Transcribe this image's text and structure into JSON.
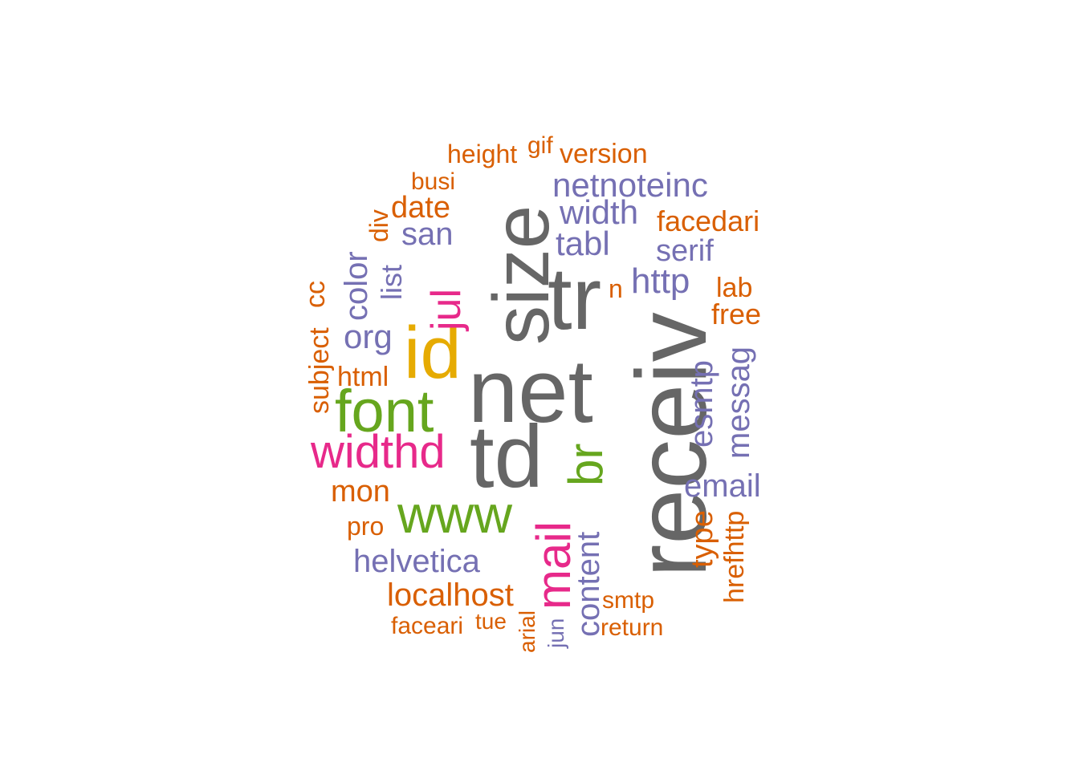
{
  "word_cloud": {
    "palette": {
      "grey": "#666666",
      "orange": "#d95f02",
      "purple": "#7570b3",
      "pink": "#e7298a",
      "green": "#66a61e",
      "gold": "#e6ab02"
    },
    "words": {
      "net": "net",
      "td": "td",
      "receiv": "receiv",
      "size": "size",
      "tr": "tr",
      "id": "id",
      "font": "font",
      "www": "www",
      "br": "br",
      "mail": "mail",
      "widthd": "widthd",
      "jul": "jul",
      "netnoteinc": "netnoteinc",
      "width": "width",
      "tabl": "tabl",
      "san": "san",
      "http": "http",
      "serif": "serif",
      "facedari": "facedari",
      "date": "date",
      "org": "org",
      "html": "html",
      "mon": "mon",
      "pro": "pro",
      "helvetica": "helvetica",
      "localhost": "localhost",
      "faceari": "faceari",
      "tue": "tue",
      "arial": "arial",
      "jun": "jun",
      "content": "content",
      "smtp": "smtp",
      "return": "return",
      "email": "email",
      "type": "type",
      "hrefhttp": "hrefhttp",
      "esmtp": "esmtp",
      "messag": "messag",
      "free": "free",
      "lab": "lab",
      "n": "n",
      "list": "list",
      "color": "color",
      "div": "div",
      "busi": "busi",
      "height": "height",
      "gif": "gif",
      "version": "version",
      "subject": "subject",
      "cc": "cc"
    }
  }
}
